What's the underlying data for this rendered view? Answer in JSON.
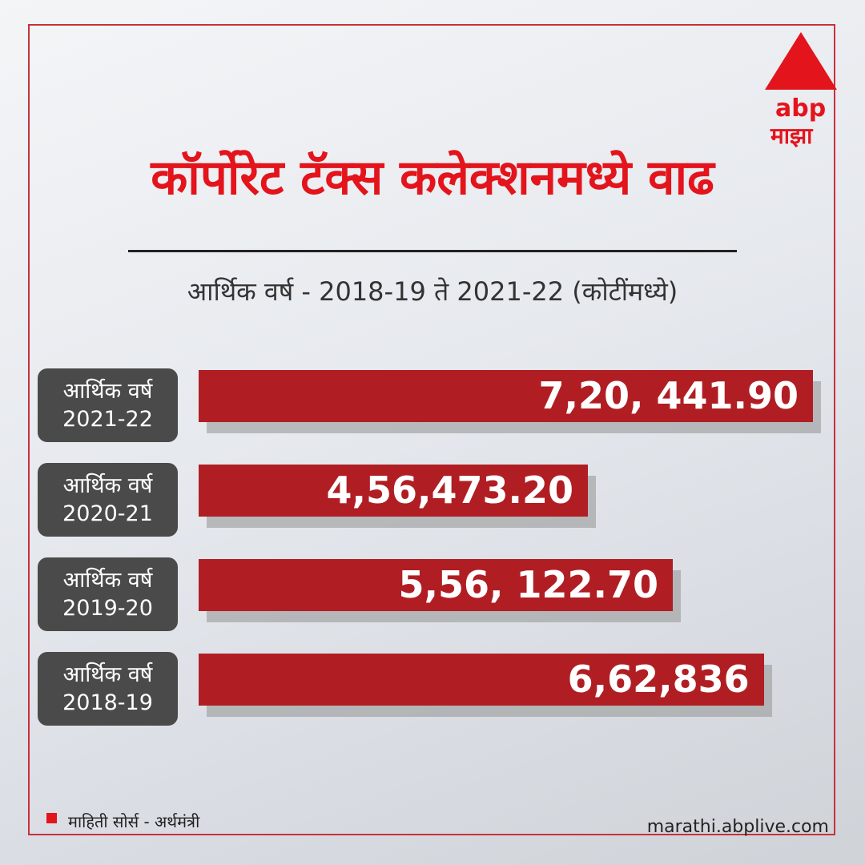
{
  "chart_data": {
    "type": "bar",
    "orientation": "horizontal",
    "title": "कॉर्पोरेट टॅक्स कलेक्शनमध्ये वाढ",
    "subtitle": "आर्थिक वर्ष - 2018-19 ते 2021-22 (कोटींमध्ये)",
    "categories": [
      "आर्थिक वर्ष 2021-22",
      "आर्थिक वर्ष 2020-21",
      "आर्थिक वर्ष 2019-20",
      "आर्थिक वर्ष 2018-19"
    ],
    "values": [
      720441.9,
      456473.2,
      556122.7,
      662836
    ],
    "value_labels": [
      "7,20, 441.90",
      "4,56,473.20",
      "5,56, 122.70",
      "6,62,836"
    ],
    "color": "#b01e23",
    "source": "माहिती सोर्स - अर्थमंत्री"
  },
  "brand": {
    "name": "abp",
    "subname": "माझा"
  },
  "website": "marathi.abplive.com"
}
